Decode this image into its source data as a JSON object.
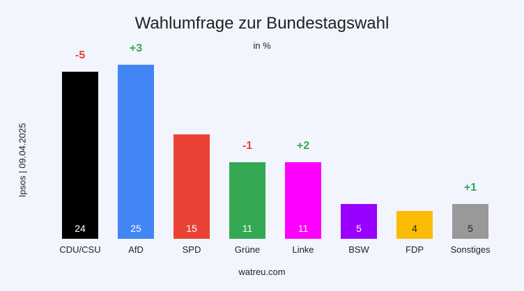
{
  "title": "Wahlumfrage zur Bundestagswahl",
  "unit_label": "in %",
  "source_label": "Ipsos | 09.04.2025",
  "footer": "watreu.com",
  "colors": {
    "positive": "#33a852",
    "negative": "#ea4335",
    "bar_value_text": "#ffffff",
    "bar_value_text_dark": "#222222",
    "category_text": "#222222"
  },
  "chart_data": {
    "type": "bar",
    "title": "Wahlumfrage zur Bundestagswahl",
    "categories": [
      "CDU/CSU",
      "AfD",
      "SPD",
      "Grüne",
      "Linke",
      "BSW",
      "FDP",
      "Sonstiges"
    ],
    "values": [
      24,
      25,
      15,
      11,
      11,
      5,
      4,
      5
    ],
    "changes": [
      "-5",
      "+3",
      "",
      "-1",
      "+2",
      "",
      "",
      "+1"
    ],
    "bar_colors": [
      "#000000",
      "#4285f4",
      "#ea4335",
      "#34a853",
      "#ff00ff",
      "#9900ff",
      "#fbbc04",
      "#999999"
    ],
    "ylim": [
      0,
      25
    ],
    "grid": false,
    "legend": "none"
  }
}
